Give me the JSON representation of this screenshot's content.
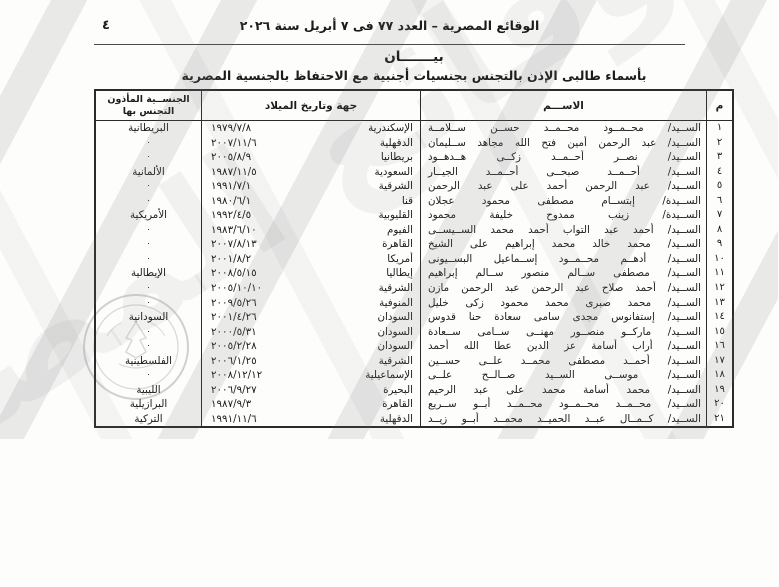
{
  "page": {
    "page_number": "٤",
    "header_line": "الوقائع المصرية – العدد ٧٧ فى ٧ أبريل سنة ٢٠٢٦",
    "title": "بيـــــــان",
    "subtitle": "بأسماء طالبى الإذن بالتجنس بجنسيات أجنبية مع الاحتفاظ بالجنسية المصرية"
  },
  "colors": {
    "text": "#1c1c1c",
    "table_border": "#2b2b2b",
    "watermark_gray": "#6e6e6e"
  },
  "watermark": {
    "calligraphy_text": "الوقائع المصرية",
    "seal_icon": "official-seal-icon"
  },
  "table": {
    "headers": {
      "serial": "م",
      "name": "الاســـم",
      "birth": "جهة وتاريخ الميلاد",
      "nationality_line1": "الجنســية المأذون",
      "nationality_line2": "التجنس بها"
    },
    "ditto_mark": "٠",
    "rows": [
      {
        "num": "١",
        "name": "الســيد/ محــمــود محــمــد حســن ســلامــة",
        "place": "الإسكندرية",
        "date": "١٩٧٩/٧/٨",
        "nationality": "البريطانية"
      },
      {
        "num": "٢",
        "name": "الســيد/ عبد الرحمن أمين فتح الله مجاهد ســليمان",
        "place": "الدقهلية",
        "date": "٢٠٠٧/١١/٦",
        "nationality": "٠"
      },
      {
        "num": "٣",
        "name": "الســيد/ نصــر أحــمــد زكــى هــدهــود",
        "place": "بريطانيا",
        "date": "٢٠٠٥/٨/٩",
        "nationality": "٠"
      },
      {
        "num": "٤",
        "name": "الســيد/ أحــمــد صبحــى أحــمــد الجيــار",
        "place": "السعودية",
        "date": "١٩٨٧/١١/٥",
        "nationality": "الألمانية"
      },
      {
        "num": "٥",
        "name": "الســيد/ عبد الرحمن أحمد على عبد الرحمن",
        "place": "الشرقية",
        "date": "١٩٩١/٧/١",
        "nationality": "٠"
      },
      {
        "num": "٦",
        "name": "الســيدة/ إبتســام مصطفى محمود عجلان",
        "place": "قنا",
        "date": "١٩٨٠/٦/١",
        "nationality": "٠"
      },
      {
        "num": "٧",
        "name": "الســيدة/ زينب ممدوح خليفة محمود",
        "place": "القليوبية",
        "date": "١٩٩٢/٤/٥",
        "nationality": "الأمريكية"
      },
      {
        "num": "٨",
        "name": "الســيد/ أحمد عبد التواب أحمد محمد الســيســى",
        "place": "الفيوم",
        "date": "١٩٨٣/٦/١٠",
        "nationality": "٠"
      },
      {
        "num": "٩",
        "name": "الســيد/ محمد خالد محمد إبراهيم على الشيخ",
        "place": "القاهرة",
        "date": "٢٠٠٧/٨/١٣",
        "nationality": "٠"
      },
      {
        "num": "١٠",
        "name": "الســيد/ أدهــم محــمــود إســماعيل البســيونى",
        "place": "أمريكا",
        "date": "٢٠٠١/٨/٢",
        "nationality": "٠"
      },
      {
        "num": "١١",
        "name": "الســيد/ مصطفى ســالم منصور ســالم إبراهيم",
        "place": "إيطاليا",
        "date": "٢٠٠٨/٥/١٥",
        "nationality": "الإيطالية"
      },
      {
        "num": "١٢",
        "name": "الســيد/ أحمد صلاح عبد الرحمن عبد الرحمن مازن",
        "place": "الشرقية",
        "date": "٢٠٠٥/١٠/١٠",
        "nationality": "٠"
      },
      {
        "num": "١٣",
        "name": "الســيد/ محمد صبرى محمد محمود زكى خليل",
        "place": "المنوفية",
        "date": "٢٠٠٩/٥/٢٦",
        "nationality": "٠"
      },
      {
        "num": "١٤",
        "name": "الســيد/ إستفانوس مجدى سامى سعادة حنا قدوس",
        "place": "السودان",
        "date": "٢٠٠١/٤/٢٦",
        "nationality": "السودانية"
      },
      {
        "num": "١٥",
        "name": "الســيد/ ماركــو منصــور مهنــى ســامى ســعادة",
        "place": "السودان",
        "date": "٢٠٠٠/٥/٣١",
        "nationality": "٠"
      },
      {
        "num": "١٦",
        "name": "الســيد/ أراب أسامة عز الدين عطا الله أحمد",
        "place": "السودان",
        "date": "٢٠٠٥/٢/٢٨",
        "nationality": "٠"
      },
      {
        "num": "١٧",
        "name": "الســيد/ أحمــد مصطفى محمــد علــى حســين",
        "place": "الشرقية",
        "date": "٢٠٠٦/١/٢٥",
        "nationality": "الفلسطينية"
      },
      {
        "num": "١٨",
        "name": "الســيد/ موســى الســيد صــالــح علــى",
        "place": "الإسماعيلية",
        "date": "٢٠٠٨/١٢/١٢",
        "nationality": "٠"
      },
      {
        "num": "١٩",
        "name": "الســيد/ محمد أسامة محمد على عبد الرحيم",
        "place": "البحيرة",
        "date": "٢٠٠٦/٩/٢٧",
        "nationality": "الليبية"
      },
      {
        "num": "٢٠",
        "name": "الســيد/ محــمــد محــمــود محــمــد أبــو ســريع",
        "place": "القاهرة",
        "date": "١٩٨٧/٩/٣",
        "nationality": "البرازيلية"
      },
      {
        "num": "٢١",
        "name": "الســيد/ كــمــال عبــد الحميــد محمــد أبــو زيــد",
        "place": "الدقهلية",
        "date": "١٩٩١/١١/٦",
        "nationality": "التركية"
      }
    ]
  }
}
